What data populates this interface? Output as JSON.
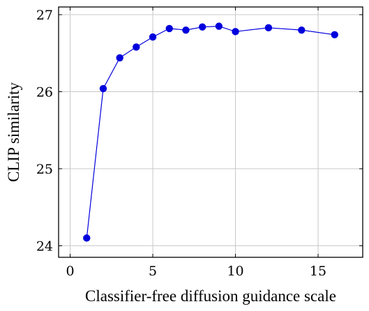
{
  "chart_data": {
    "type": "line",
    "xlabel": "Classifier-free diffusion guidance scale",
    "ylabel": "CLIP similarity",
    "xlim": [
      -0.7,
      17.7
    ],
    "ylim": [
      23.85,
      27.1
    ],
    "x_ticks": [
      0,
      5,
      10,
      15
    ],
    "y_ticks": [
      24,
      25,
      26,
      27
    ],
    "grid": true,
    "color": "#0000dd",
    "series": [
      {
        "x": [
          1,
          2,
          3,
          4,
          5,
          6,
          7,
          8,
          9,
          10,
          12,
          14,
          16
        ],
        "y": [
          24.1,
          26.04,
          26.44,
          26.58,
          26.71,
          26.82,
          26.8,
          26.84,
          26.85,
          26.78,
          26.83,
          26.8,
          26.74
        ]
      }
    ]
  }
}
